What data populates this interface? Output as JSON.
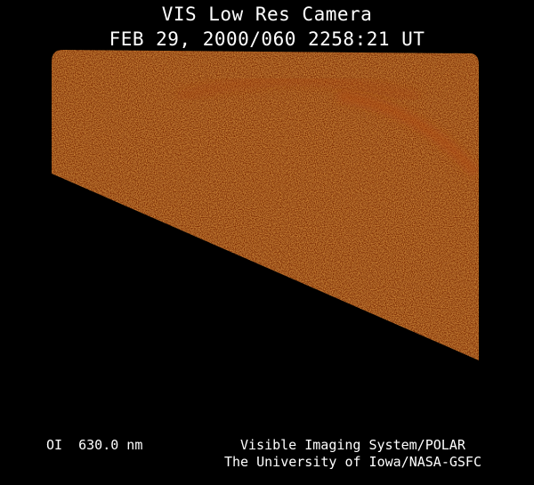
{
  "header": {
    "title": "VIS Low Res Camera",
    "timestamp": "FEB 29, 2000/060 2258:21 UT"
  },
  "image": {
    "description_colors": {
      "emission": "#8a3208",
      "background": "#000000"
    }
  },
  "footer": {
    "filter_band": "OI  630.0 nm",
    "credit_line1": "Visible Imaging System/POLAR",
    "credit_line2": "The University of Iowa/NASA-GSFC"
  }
}
